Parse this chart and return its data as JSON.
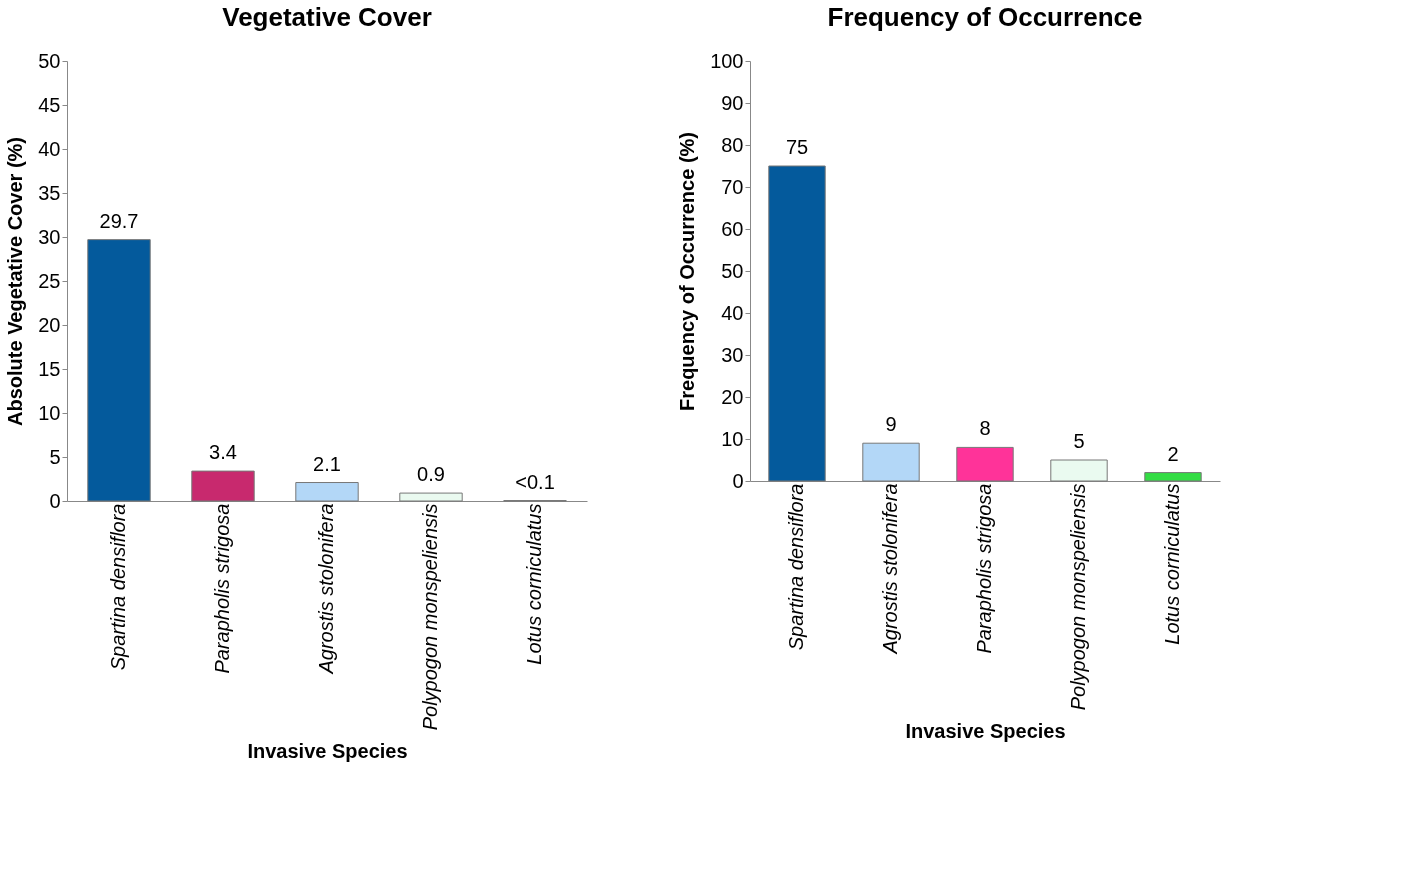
{
  "chart_data": [
    {
      "type": "bar",
      "title": "Vegetative Cover",
      "xlabel": "Invasive Species",
      "ylabel": "Absolute Vegetative Cover (%)",
      "categories": [
        "Spartina densiflora",
        "Parapholis strigosa",
        "Agrostis stolonifera",
        "Polypogon monspeliensis",
        "Lotus corniculatus"
      ],
      "values": [
        29.7,
        3.4,
        2.1,
        0.9,
        0.05
      ],
      "colors": [
        "#045a9c",
        "#c8296e",
        "#b3d7f7",
        "#eafaf0",
        "#c8c8c8"
      ],
      "value_labels": [
        "29.7",
        "3.4",
        "2.1",
        "0.9",
        "<0.1"
      ],
      "ylim": [
        0,
        50
      ],
      "yticks": [
        0,
        5,
        10,
        15,
        20,
        25,
        30,
        35,
        40,
        45,
        50
      ],
      "grid": false
    },
    {
      "type": "bar",
      "title": "Frequency of Occurrence",
      "xlabel": "Invasive Species",
      "ylabel": "Frequency of Occurrence (%)",
      "categories": [
        "Spartina densiflora",
        "Agrostis stolonifera",
        "Parapholis strigosa",
        "Polypogon monspeliensis",
        "Lotus corniculatus"
      ],
      "values": [
        75,
        9,
        8,
        5,
        2
      ],
      "colors": [
        "#045a9c",
        "#b3d7f7",
        "#ff3399",
        "#eafaf0",
        "#33dd44"
      ],
      "data_labels": true,
      "ylim": [
        0,
        100
      ],
      "yticks": [
        0,
        10,
        20,
        30,
        40,
        50,
        60,
        70,
        80,
        90,
        100
      ],
      "grid": false
    }
  ]
}
